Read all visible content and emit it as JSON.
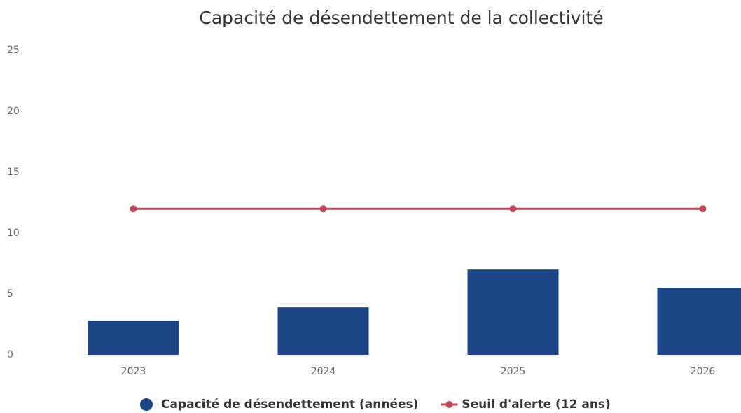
{
  "chart_data": {
    "type": "bar",
    "title": "Capacité de désendettement de la collectivité",
    "categories": [
      "2023",
      "2024",
      "2025",
      "2026"
    ],
    "series": [
      {
        "name": "Capacité de désendettement (années)",
        "type": "bar",
        "color": "#1b4587",
        "values": [
          2.8,
          3.9,
          7.0,
          5.5
        ]
      },
      {
        "name": "Seuil d'alerte (12 ans)",
        "type": "line",
        "color": "#c0475a",
        "values": [
          12,
          12,
          12,
          12
        ]
      }
    ],
    "ylim": [
      0,
      25
    ],
    "yticks": [
      0,
      5,
      10,
      15,
      20,
      25
    ],
    "grid": false,
    "legend": "bottom"
  }
}
